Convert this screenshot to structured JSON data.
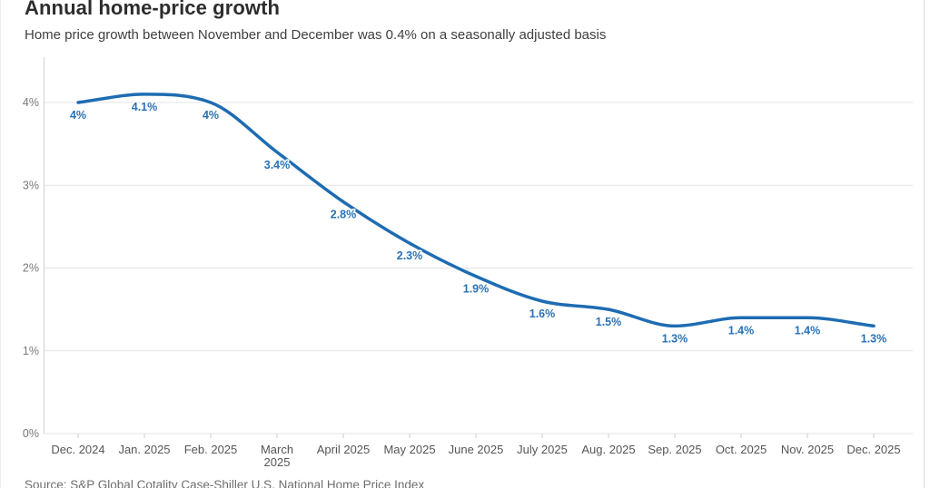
{
  "header": {
    "title": "Annual home-price growth",
    "subtitle": "Home price growth between November and December was 0.4% on a seasonally adjusted basis"
  },
  "footer": {
    "source": "Source: S&P Global Cotality Case-Shiller U.S. National Home Price Index"
  },
  "chart_data": {
    "type": "line",
    "title": "Annual home-price growth",
    "xlabel": "",
    "ylabel": "",
    "categories": [
      "Dec. 2024",
      "Jan. 2025",
      "Feb. 2025",
      "March 2025",
      "April 2025",
      "May 2025",
      "June 2025",
      "July 2025",
      "Aug. 2025",
      "Sep. 2025",
      "Oct. 2025",
      "Nov. 2025",
      "Dec. 2025"
    ],
    "series": [
      {
        "name": "Annual home-price growth (%)",
        "values": [
          4.0,
          4.1,
          4.0,
          3.4,
          2.8,
          2.3,
          1.9,
          1.6,
          1.5,
          1.3,
          1.4,
          1.4,
          1.3
        ],
        "point_labels": [
          "4%",
          "4.1%",
          "4%",
          "3.4%",
          "2.8%",
          "2.3%",
          "1.9%",
          "1.6%",
          "1.5%",
          "1.3%",
          "1.4%",
          "1.4%",
          "1.3%"
        ]
      }
    ],
    "ylim": [
      0,
      4
    ],
    "y_tick_labels": [
      "0%",
      "1%",
      "2%",
      "3%",
      "4%"
    ],
    "grid": true,
    "legend": "none",
    "wrap_tick_indices": [
      3
    ],
    "curve": "smooth-monotone",
    "colors": {
      "line": "#1e6cb2",
      "point_label": "#2a72b5",
      "grid": "#e4e4e4",
      "axis": "#d2d2d2",
      "tick": "#cccccc",
      "x_tick_text": "#555555",
      "y_tick_text": "#787878"
    }
  }
}
